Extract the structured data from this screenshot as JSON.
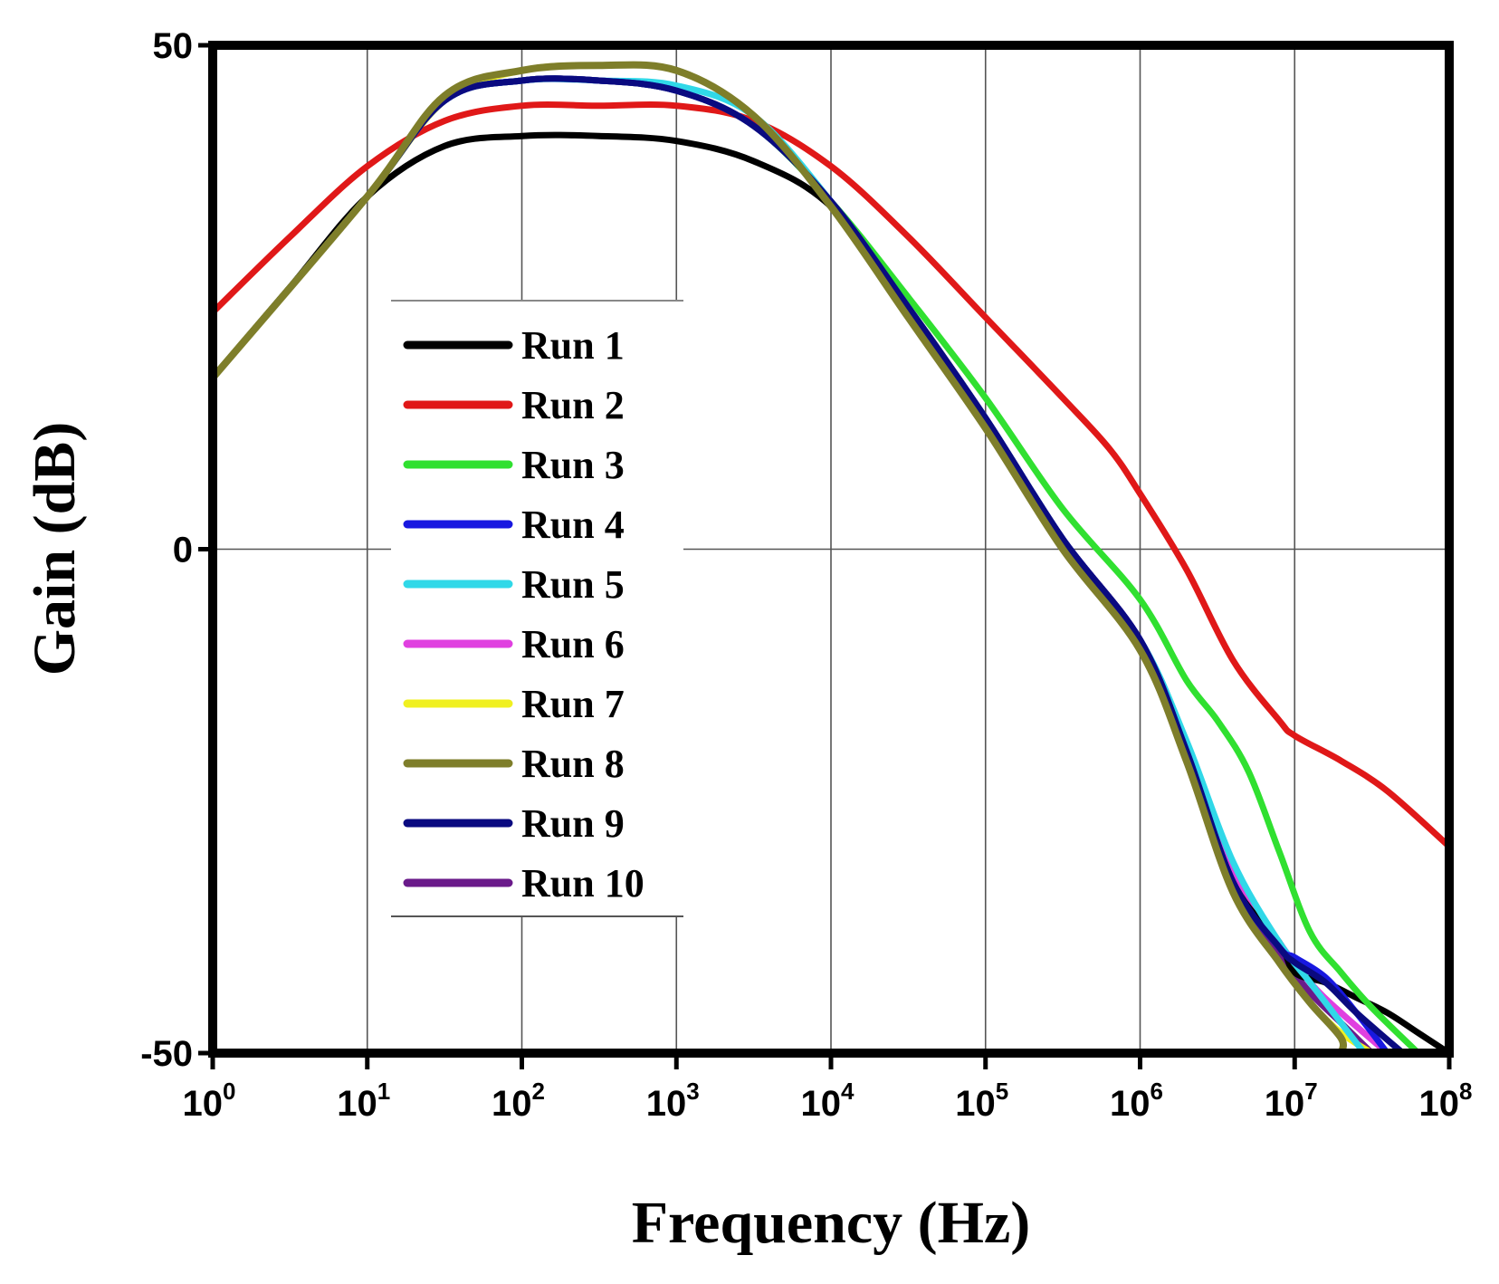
{
  "chart_data": {
    "type": "line",
    "title": "",
    "xlabel": "Frequency (Hz)",
    "ylabel": "Gain (dB)",
    "x_scale": "log10",
    "xlim_exponent": [
      0,
      8
    ],
    "ylim": [
      -50,
      50
    ],
    "grid": true,
    "legend_position": "center-left",
    "x_ticks": [
      {
        "base": "10",
        "exp": "0"
      },
      {
        "base": "10",
        "exp": "1"
      },
      {
        "base": "10",
        "exp": "2"
      },
      {
        "base": "10",
        "exp": "3"
      },
      {
        "base": "10",
        "exp": "4"
      },
      {
        "base": "10",
        "exp": "5"
      },
      {
        "base": "10",
        "exp": "6"
      },
      {
        "base": "10",
        "exp": "7"
      },
      {
        "base": "10",
        "exp": "8"
      }
    ],
    "y_ticks": [
      {
        "value": 50,
        "label": "50"
      },
      {
        "value": 0,
        "label": "0"
      },
      {
        "value": -50,
        "label": "-50"
      }
    ],
    "series": [
      {
        "name": "Run 10",
        "color": "#6a1a8a",
        "width": 7,
        "log10_x": [
          0,
          1,
          1.5,
          2,
          2.5,
          3,
          3.5,
          4,
          4.5,
          5,
          5.5,
          6,
          6.3,
          6.6,
          6.9,
          7.1,
          7.3,
          7.5
        ],
        "y": [
          17,
          35,
          44.5,
          46.5,
          46.5,
          45.5,
          42,
          34.5,
          24,
          13,
          1,
          -9,
          -20,
          -33,
          -40,
          -44,
          -47,
          -50
        ]
      },
      {
        "name": "Run 6",
        "color": "#e040e0",
        "width": 7,
        "log10_x": [
          0,
          1,
          1.5,
          2,
          2.5,
          3,
          3.5,
          4,
          4.5,
          5,
          5.5,
          6,
          6.3,
          6.6,
          6.9,
          7.1,
          7.3,
          7.6
        ],
        "y": [
          17,
          35,
          44.5,
          46.5,
          46.5,
          45.5,
          42,
          34.5,
          24,
          13,
          1,
          -9,
          -20,
          -32,
          -39,
          -43,
          -46,
          -50
        ]
      },
      {
        "name": "Run 7",
        "color": "#f0f020",
        "width": 7,
        "log10_x": [
          0,
          1,
          1.5,
          2,
          2.5,
          3,
          3.5,
          4,
          4.5,
          5,
          5.5,
          6,
          6.3,
          6.6,
          6.9,
          7.1,
          7.3,
          7.5
        ],
        "y": [
          17,
          35,
          44.5,
          47.5,
          48,
          47.5,
          43,
          34,
          23,
          12,
          0,
          -10,
          -21,
          -34,
          -41,
          -45,
          -48,
          -50
        ]
      },
      {
        "name": "Run 1",
        "color": "#000000",
        "width": 7,
        "log10_x": [
          0,
          0.5,
          1,
          1.5,
          2,
          2.5,
          3,
          3.5,
          4,
          4.5,
          5,
          5.5,
          6,
          6.3,
          6.6,
          6.9,
          7,
          7.2,
          7.4,
          7.6,
          7.8,
          8
        ],
        "y": [
          17,
          26,
          35,
          40,
          41,
          41,
          40.5,
          38.5,
          34,
          24,
          13,
          1,
          -9,
          -20,
          -33,
          -39,
          -42,
          -43,
          -44.5,
          -46,
          -48,
          -50
        ]
      },
      {
        "name": "Run 2",
        "color": "#e01818",
        "width": 7,
        "log10_x": [
          0,
          0.5,
          1,
          1.5,
          2,
          2.5,
          3,
          3.5,
          4,
          4.5,
          5,
          5.5,
          5.8,
          6,
          6.3,
          6.6,
          6.9,
          7,
          7.3,
          7.6,
          8
        ],
        "y": [
          23.5,
          31,
          38,
          42.5,
          44,
          44,
          44,
          42.5,
          38,
          31,
          23,
          15,
          10,
          5.5,
          -2,
          -11,
          -17,
          -18.5,
          -21,
          -24,
          -29.5
        ]
      },
      {
        "name": "Run 3",
        "color": "#30e030",
        "width": 7,
        "log10_x": [
          0,
          1,
          1.5,
          2,
          2.5,
          3,
          3.5,
          4,
          4.5,
          5,
          5.5,
          6,
          6.3,
          6.5,
          6.7,
          6.9,
          7.1,
          7.3,
          7.5,
          7.8
        ],
        "y": [
          17,
          35,
          44.5,
          46.5,
          46.5,
          45.5,
          42,
          34.5,
          25,
          15,
          4,
          -5,
          -13,
          -17,
          -22,
          -30,
          -38,
          -42,
          -45.5,
          -50
        ]
      },
      {
        "name": "Run 5",
        "color": "#30d8e8",
        "width": 7,
        "log10_x": [
          0,
          1,
          1.5,
          2,
          2.5,
          3,
          3.5,
          4,
          4.5,
          5,
          5.5,
          6,
          6.3,
          6.6,
          6.9,
          7.1,
          7.3,
          7.45
        ],
        "y": [
          17,
          35,
          44.5,
          46.5,
          46.5,
          46,
          43,
          34.5,
          24,
          13,
          1,
          -9,
          -19,
          -31,
          -39,
          -43,
          -47,
          -50
        ]
      },
      {
        "name": "Run 4",
        "color": "#1818e0",
        "width": 7,
        "log10_x": [
          0,
          1,
          1.5,
          2,
          2.5,
          3,
          3.5,
          4,
          4.5,
          5,
          5.5,
          6,
          6.3,
          6.6,
          6.9,
          7,
          7.2,
          7.4,
          7.6
        ],
        "y": [
          17,
          35,
          44.5,
          46.5,
          46.5,
          45.5,
          42,
          34.5,
          24,
          13,
          1,
          -9,
          -20,
          -33,
          -39.5,
          -40.5,
          -42.5,
          -46,
          -50
        ]
      },
      {
        "name": "Run 9",
        "color": "#0a0a80",
        "width": 7,
        "log10_x": [
          0,
          1,
          1.5,
          2,
          2.5,
          3,
          3.5,
          4,
          4.5,
          5,
          5.5,
          6,
          6.3,
          6.6,
          6.9,
          7,
          7.2,
          7.4,
          7.7
        ],
        "y": [
          17,
          35,
          44.5,
          46.5,
          46.5,
          45.5,
          42,
          34.5,
          24,
          13,
          1,
          -9,
          -20,
          -33,
          -39.5,
          -41,
          -43,
          -46,
          -50
        ]
      },
      {
        "name": "Run 8",
        "color": "#7e7e2a",
        "width": 8,
        "log10_x": [
          0,
          1,
          1.5,
          2,
          2.5,
          3,
          3.5,
          4,
          4.5,
          5,
          5.5,
          6,
          6.3,
          6.6,
          6.9,
          7.1,
          7.3,
          7.3
        ],
        "y": [
          17,
          35,
          45,
          47.5,
          48,
          47.5,
          43,
          34,
          23,
          12,
          0,
          -10,
          -21,
          -34,
          -41,
          -45,
          -48.5,
          -50
        ]
      }
    ],
    "legend": [
      {
        "label": "Run 1",
        "color": "#000000"
      },
      {
        "label": "Run 2",
        "color": "#e01818"
      },
      {
        "label": "Run 3",
        "color": "#30e030"
      },
      {
        "label": "Run 4",
        "color": "#1818e0"
      },
      {
        "label": "Run 5",
        "color": "#30d8e8"
      },
      {
        "label": "Run 6",
        "color": "#e040e0"
      },
      {
        "label": "Run 7",
        "color": "#f0f020"
      },
      {
        "label": "Run 8",
        "color": "#7e7e2a"
      },
      {
        "label": "Run 9",
        "color": "#0a0a80"
      },
      {
        "label": "Run 10",
        "color": "#6a1a8a"
      }
    ]
  }
}
